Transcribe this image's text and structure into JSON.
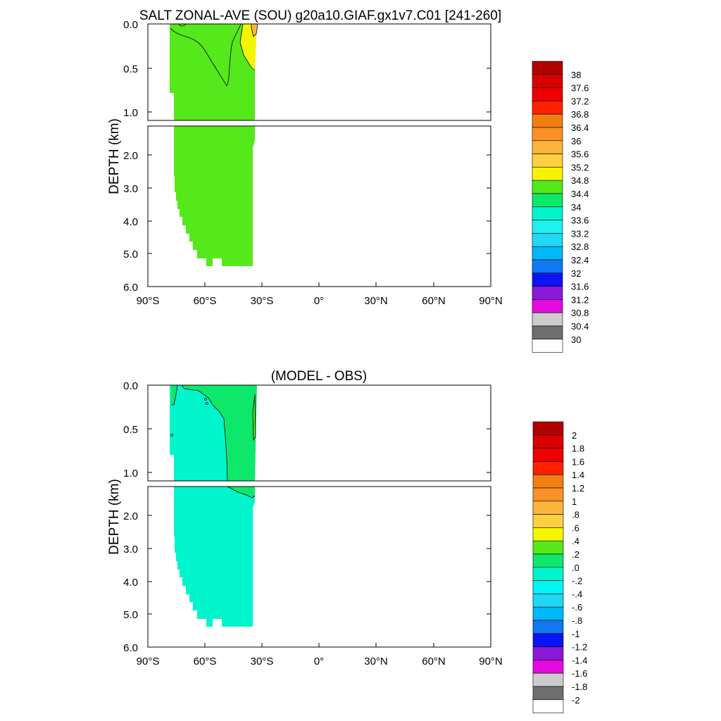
{
  "colors": {
    "green": "#55e81a",
    "aqua_green": "#00f5cc",
    "sea_green": "#0ee86a",
    "yellow": "#f5f500",
    "orange_light": "#fcb43a",
    "orange": "#f59023",
    "land": "#ffffff",
    "frame": "#000000"
  },
  "chart_data": [
    {
      "type": "heatmap",
      "title": "SALT ZONAL-AVE (SOU) g20a10.GIAF.gx1v7.C01 [241-260]",
      "xlabel": "",
      "ylabel": "DEPTH (km)",
      "x_ticks": [
        "90°S",
        "60°S",
        "30°S",
        "0°",
        "30°N",
        "60°N",
        "90°N"
      ],
      "x_tick_values": [
        -90,
        -60,
        -30,
        0,
        30,
        60,
        90
      ],
      "y_ticks_upper": [
        "0.0",
        "0.5",
        "1.0"
      ],
      "y_ticks_lower": [
        "2.0",
        "3.0",
        "4.0",
        "5.0",
        "6.0"
      ],
      "xlim": [
        -90,
        90
      ],
      "ylim_upper_km": [
        0,
        1.1
      ],
      "ylim_lower_km": [
        1.1,
        6.0
      ],
      "colorbar": {
        "labels": [
          "38",
          "37.6",
          "37.2",
          "36.8",
          "36.4",
          "36",
          "35.6",
          "35.2",
          "34.8",
          "34.4",
          "34",
          "33.6",
          "33.2",
          "32.8",
          "32.4",
          "32",
          "31.6",
          "31.2",
          "30.8",
          "30.4",
          "30"
        ],
        "colors": [
          "#b00000",
          "#d80000",
          "#ee0000",
          "#ff2000",
          "#f08010",
          "#fa9028",
          "#fcb43a",
          "#fcd040",
          "#f5f500",
          "#55e81a",
          "#0ee86a",
          "#00f5cc",
          "#20f0ee",
          "#20d8f5",
          "#00b8f5",
          "#1078f0",
          "#0a14f5",
          "#8a18d8",
          "#e40ae0",
          "#cccccc",
          "#6e6e6e",
          "#ffffff"
        ]
      },
      "regions": [
        {
          "name": "34.4-34.8",
          "lat": [
            -78,
            -34
          ],
          "depth_km": [
            0,
            5.4
          ]
        },
        {
          "name": "34.8-35.2",
          "lat": [
            -36,
            -33
          ],
          "depth_km": [
            0,
            0.55
          ]
        },
        {
          "name": "35.2-35.6",
          "lat": [
            -34,
            -33
          ],
          "depth_km": [
            0,
            0.1
          ]
        }
      ]
    },
    {
      "type": "heatmap",
      "title": "(MODEL - OBS)",
      "xlabel": "",
      "ylabel": "DEPTH (km)",
      "x_ticks": [
        "90°S",
        "60°S",
        "30°S",
        "0°",
        "30°N",
        "60°N",
        "90°N"
      ],
      "x_tick_values": [
        -90,
        -60,
        -30,
        0,
        30,
        60,
        90
      ],
      "y_ticks_upper": [
        "0.0",
        "0.5",
        "1.0"
      ],
      "y_ticks_lower": [
        "2.0",
        "3.0",
        "4.0",
        "5.0",
        "6.0"
      ],
      "xlim": [
        -90,
        90
      ],
      "ylim_upper_km": [
        0,
        1.1
      ],
      "ylim_lower_km": [
        1.1,
        6.0
      ],
      "colorbar": {
        "labels": [
          "2",
          "1.8",
          "1.6",
          "1.4",
          "1.2",
          "1",
          ".8",
          ".6",
          ".4",
          ".2",
          ".0",
          "-.2",
          "-.4",
          "-.6",
          "-.8",
          "-1",
          "-1.2",
          "-1.4",
          "-1.6",
          "-1.8",
          "-2"
        ],
        "colors": [
          "#b00000",
          "#d80000",
          "#ee0000",
          "#ff2000",
          "#f08010",
          "#fa9028",
          "#fcb43a",
          "#fcd040",
          "#f5f500",
          "#55e81a",
          "#0ee86a",
          "#00f5cc",
          "#00f5f5",
          "#20d8f5",
          "#00b8f5",
          "#1078f0",
          "#0a14f5",
          "#8a18d8",
          "#e40ae0",
          "#cccccc",
          "#6e6e6e",
          "#ffffff"
        ]
      },
      "regions": [
        {
          "name": "-0.2-0.0",
          "lat": [
            -78,
            -34
          ],
          "depth_km": [
            0,
            5.4
          ]
        },
        {
          "name": "0.0-0.2",
          "lat": [
            -48,
            -34
          ],
          "depth_km": [
            0,
            1.2
          ]
        },
        {
          "name": "0.2-0.4",
          "lat": [
            -34,
            -33
          ],
          "depth_km": [
            0.05,
            0.7
          ]
        }
      ]
    }
  ]
}
